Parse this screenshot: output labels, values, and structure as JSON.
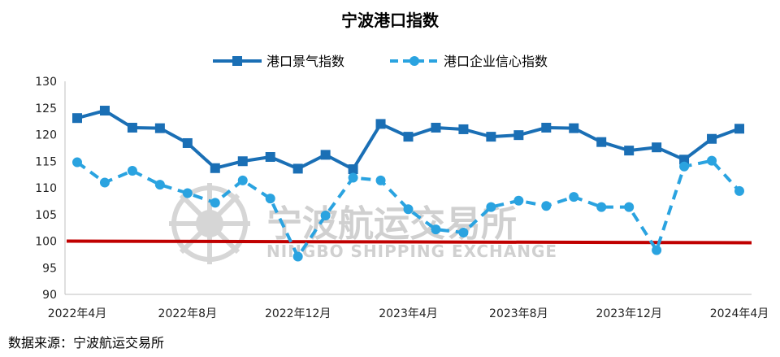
{
  "chart_data": {
    "type": "line",
    "title": "宁波港口指数",
    "source": "数据来源：宁波航运交易所",
    "watermark": {
      "cn": "宁波航运交易所",
      "en": "NINGBO SHIPPING EXCHANGE"
    },
    "ylim": [
      90,
      130
    ],
    "yticks": [
      "130",
      "125",
      "120",
      "115",
      "110",
      "105",
      "100",
      "95",
      "90"
    ],
    "xtick_labels": [
      {
        "index": 0,
        "label": "2022年4月"
      },
      {
        "index": 4,
        "label": "2022年8月"
      },
      {
        "index": 8,
        "label": "2022年12月"
      },
      {
        "index": 12,
        "label": "2023年4月"
      },
      {
        "index": 16,
        "label": "2023年8月"
      },
      {
        "index": 20,
        "label": "2023年12月"
      },
      {
        "index": 24,
        "label": "2024年4月"
      }
    ],
    "categories": [
      "2022-04",
      "2022-05",
      "2022-06",
      "2022-07",
      "2022-08",
      "2022-09",
      "2022-10",
      "2022-11",
      "2022-12",
      "2023-01",
      "2023-02",
      "2023-03",
      "2023-04",
      "2023-05",
      "2023-06",
      "2023-07",
      "2023-08",
      "2023-09",
      "2023-10",
      "2023-11",
      "2023-12",
      "2024-01",
      "2024-02",
      "2024-03",
      "2024-04"
    ],
    "series": [
      {
        "name": "港口景气指数",
        "color": "#1a6fb5",
        "style": "solid",
        "marker": "square",
        "values": [
          123.1,
          124.5,
          121.3,
          121.2,
          118.4,
          113.7,
          115.0,
          115.8,
          113.6,
          116.2,
          113.5,
          122.0,
          119.6,
          121.3,
          121.0,
          119.6,
          119.9,
          121.3,
          121.2,
          118.6,
          117.0,
          117.6,
          115.3,
          119.2,
          121.1
        ]
      },
      {
        "name": "港口企业信心指数",
        "color": "#2aa3e0",
        "style": "dashed",
        "marker": "circle",
        "values": [
          114.8,
          111.0,
          113.2,
          110.6,
          109.0,
          107.2,
          111.4,
          108.0,
          97.1,
          104.8,
          111.9,
          111.4,
          106.0,
          102.2,
          101.6,
          106.4,
          107.6,
          106.6,
          108.3,
          106.4,
          106.4,
          98.3,
          114.0,
          115.1,
          109.4
        ]
      }
    ],
    "reference_line": {
      "value": 100,
      "color": "#c00000"
    }
  }
}
